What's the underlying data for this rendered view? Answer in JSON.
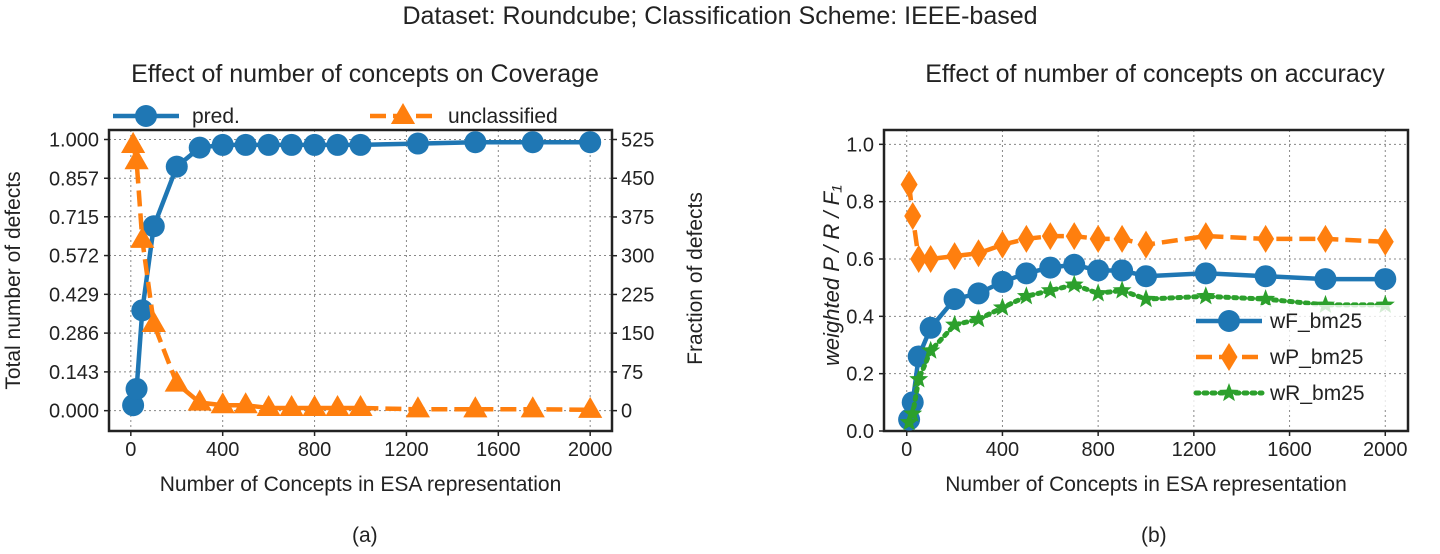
{
  "figure": {
    "suptitle": "Dataset: Roundcube;   Classification Scheme: IEEE-based",
    "caption_a": "(a)",
    "caption_b": "(b)"
  },
  "chart_data": [
    {
      "type": "line",
      "title": "Effect of number of concepts on Coverage",
      "xlabel": "Number of Concepts in ESA representation",
      "ylabel": "Total number of defects",
      "ylabel_right": "Fraction of defects",
      "xlim": [
        -95,
        2095
      ],
      "ylim": [
        -0.075,
        1.035
      ],
      "ylim_right": [
        -39.4,
        543.4
      ],
      "xticks": [
        "0",
        "400",
        "800",
        "1200",
        "1600",
        "2000"
      ],
      "xtick_values": [
        0,
        400,
        800,
        1200,
        1600,
        2000
      ],
      "yticks": [
        "0.000",
        "0.143",
        "0.286",
        "0.429",
        "0.572",
        "0.715",
        "0.857",
        "1.000"
      ],
      "ytick_values": [
        0,
        0.143,
        0.286,
        0.429,
        0.572,
        0.715,
        0.857,
        1.0
      ],
      "yticks_right": [
        "0",
        "75",
        "150",
        "225",
        "300",
        "375",
        "450",
        "525"
      ],
      "ytick_right_values": [
        0,
        75,
        150,
        225,
        300,
        375,
        450,
        525
      ],
      "grid": true,
      "legend_position": "top",
      "x": [
        10,
        25,
        50,
        100,
        200,
        300,
        400,
        500,
        600,
        700,
        800,
        900,
        1000,
        1250,
        1500,
        1750,
        2000
      ],
      "series": [
        {
          "name": "pred.",
          "color": "#1f77b4",
          "marker": "circle",
          "linestyle": "solid",
          "values": [
            0.02,
            0.08,
            0.37,
            0.68,
            0.9,
            0.97,
            0.98,
            0.98,
            0.98,
            0.98,
            0.98,
            0.98,
            0.98,
            0.985,
            0.99,
            0.99,
            0.99
          ]
        },
        {
          "name": "unclassified",
          "color": "#ff7f0e",
          "marker": "triangle",
          "linestyle": "dashed",
          "values": [
            0.98,
            0.92,
            0.63,
            0.32,
            0.1,
            0.03,
            0.02,
            0.02,
            0.01,
            0.01,
            0.01,
            0.01,
            0.01,
            0.005,
            0.005,
            0.005,
            0.003
          ]
        }
      ]
    },
    {
      "type": "line",
      "title": "Effect of number of concepts on accuracy",
      "xlabel": "Number of Concepts in ESA representation",
      "ylabel": "weighted  P / R / F₁",
      "xlim": [
        -95,
        2095
      ],
      "ylim": [
        0,
        1.05
      ],
      "xticks": [
        "0",
        "400",
        "800",
        "1200",
        "1600",
        "2000"
      ],
      "xtick_values": [
        0,
        400,
        800,
        1200,
        1600,
        2000
      ],
      "yticks": [
        "0.0",
        "0.2",
        "0.4",
        "0.6",
        "0.8",
        "1.0"
      ],
      "ytick_values": [
        0,
        0.2,
        0.4,
        0.6,
        0.8,
        1.0
      ],
      "grid": true,
      "legend_position": "right",
      "x": [
        10,
        25,
        50,
        100,
        200,
        300,
        400,
        500,
        600,
        700,
        800,
        900,
        1000,
        1250,
        1500,
        1750,
        2000
      ],
      "series": [
        {
          "name": "wF_bm25",
          "color": "#1f77b4",
          "marker": "circle",
          "linestyle": "solid",
          "values": [
            0.04,
            0.1,
            0.26,
            0.36,
            0.46,
            0.48,
            0.52,
            0.55,
            0.57,
            0.58,
            0.56,
            0.56,
            0.54,
            0.55,
            0.54,
            0.53,
            0.53
          ]
        },
        {
          "name": "wP_bm25",
          "color": "#ff7f0e",
          "marker": "diamond",
          "linestyle": "dashed",
          "values": [
            0.86,
            0.75,
            0.6,
            0.6,
            0.61,
            0.62,
            0.65,
            0.67,
            0.68,
            0.68,
            0.67,
            0.67,
            0.65,
            0.68,
            0.67,
            0.67,
            0.66
          ]
        },
        {
          "name": "wR_bm25",
          "color": "#2ca02c",
          "marker": "star",
          "linestyle": "dotted",
          "values": [
            0.03,
            0.06,
            0.18,
            0.28,
            0.37,
            0.39,
            0.43,
            0.47,
            0.49,
            0.51,
            0.48,
            0.49,
            0.46,
            0.47,
            0.46,
            0.44,
            0.44
          ]
        }
      ]
    }
  ]
}
